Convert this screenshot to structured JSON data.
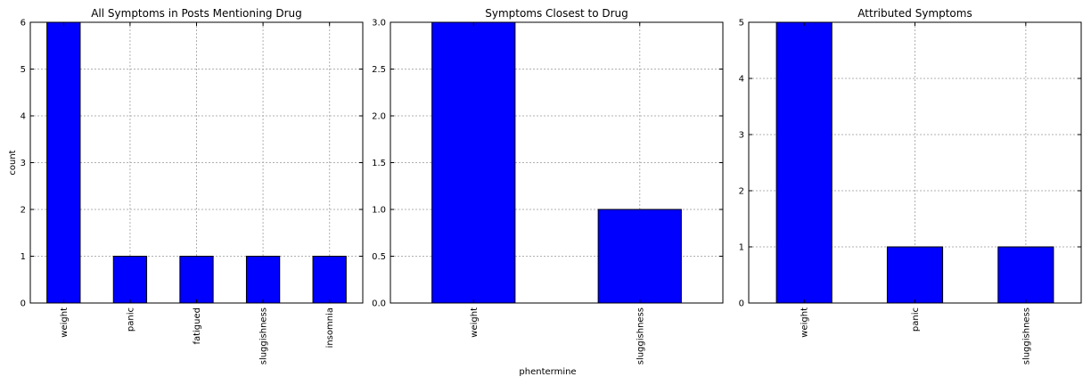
{
  "colors": {
    "bar": "#0000ff",
    "grid": "#b0b0b0",
    "axes": "#000000"
  },
  "chart_data": [
    {
      "type": "bar",
      "title": "All Symptoms in Posts Mentioning Drug",
      "xlabel": "",
      "ylabel": "count",
      "categories": [
        "weight",
        "panic",
        "fatigued",
        "sluggishness",
        "insomnia"
      ],
      "values": [
        6,
        1,
        1,
        1,
        1
      ],
      "ylim": [
        0,
        6
      ],
      "yticks": [
        "0",
        "1",
        "2",
        "3",
        "4",
        "5",
        "6"
      ],
      "grid": true
    },
    {
      "type": "bar",
      "title": "Symptoms Closest to Drug",
      "xlabel": "phentermine",
      "ylabel": "",
      "categories": [
        "weight",
        "sluggishness"
      ],
      "values": [
        3,
        1
      ],
      "ylim": [
        0,
        3
      ],
      "yticks": [
        "0.0",
        "0.5",
        "1.0",
        "1.5",
        "2.0",
        "2.5",
        "3.0"
      ],
      "grid": true
    },
    {
      "type": "bar",
      "title": "Attributed Symptoms",
      "xlabel": "",
      "ylabel": "",
      "categories": [
        "weight",
        "panic",
        "sluggishness"
      ],
      "values": [
        5,
        1,
        1
      ],
      "ylim": [
        0,
        5
      ],
      "yticks": [
        "0",
        "1",
        "2",
        "3",
        "4",
        "5"
      ],
      "grid": true
    }
  ]
}
